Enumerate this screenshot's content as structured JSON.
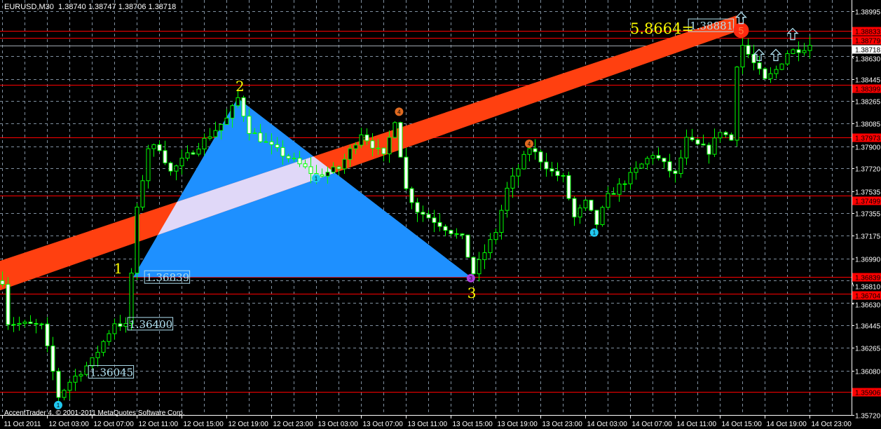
{
  "header": {
    "symbol": "EURUSD,M30",
    "open": "1.38740",
    "high": "1.38747",
    "low": "1.38706",
    "close": "1.38718"
  },
  "copyright": "AccentTrader 4, © 2001-2011 MetaQuotes Software Corp.",
  "colors": {
    "background": "#000000",
    "grid": "#8090a0",
    "candle_outline": "#00ff00",
    "bear_body": "#ffffff",
    "bull_body": "#000000",
    "level_line": "#ff0000",
    "channel": "#ff4010",
    "triangle": "#1e90ff",
    "overlap": "#e0d8f8",
    "label_yellow": "#ffff00"
  },
  "chart_data": {
    "type": "candlestick",
    "timeframe": "M30",
    "grid": true,
    "ylim": [
      1.3572,
      1.3908
    ],
    "y_ticks": [
      "1.38995",
      "1.38630",
      "1.38445",
      "1.38265",
      "1.38085",
      "1.37900",
      "1.37720",
      "1.37535",
      "1.37355",
      "1.37175",
      "1.36990",
      "1.36810",
      "1.36630",
      "1.36445",
      "1.36265",
      "1.36080",
      "1.35720"
    ],
    "x_ticks": [
      "11 Oct 2011",
      "12 Oct 03:00",
      "12 Oct 07:00",
      "12 Oct 11:00",
      "12 Oct 15:00",
      "12 Oct 19:00",
      "12 Oct 23:00",
      "13 Oct 03:00",
      "13 Oct 07:00",
      "13 Oct 11:00",
      "13 Oct 15:00",
      "13 Oct 19:00",
      "13 Oct 23:00",
      "14 Oct 03:00",
      "14 Oct 07:00",
      "14 Oct 11:00",
      "14 Oct 15:00",
      "14 Oct 19:00",
      "14 Oct 23:00"
    ],
    "x_start": "11 Oct 23:00",
    "approx_close_path_hours_from_start": [
      [
        0,
        1.3681
      ],
      [
        0.5,
        1.3647
      ],
      [
        3.5,
        1.3644
      ],
      [
        4.5,
        1.3607
      ],
      [
        5,
        1.3587
      ],
      [
        6,
        1.3599
      ],
      [
        8,
        1.3616
      ],
      [
        10,
        1.3647
      ],
      [
        11,
        1.3644
      ],
      [
        11.5,
        1.3687
      ],
      [
        12,
        1.3738
      ],
      [
        13,
        1.3789
      ],
      [
        14,
        1.3789
      ],
      [
        15,
        1.3769
      ],
      [
        16,
        1.3778
      ],
      [
        18,
        1.3795
      ],
      [
        20,
        1.3812
      ],
      [
        21,
        1.3829
      ],
      [
        22,
        1.3803
      ],
      [
        24,
        1.3789
      ],
      [
        26,
        1.3778
      ],
      [
        28,
        1.3766
      ],
      [
        30,
        1.3772
      ],
      [
        32,
        1.3801
      ],
      [
        34,
        1.3781
      ],
      [
        35,
        1.3812
      ],
      [
        36,
        1.3755
      ],
      [
        37,
        1.3738
      ],
      [
        39,
        1.3727
      ],
      [
        41,
        1.3715
      ],
      [
        42,
        1.3687
      ],
      [
        43,
        1.3704
      ],
      [
        44,
        1.3721
      ],
      [
        45,
        1.3755
      ],
      [
        47,
        1.3789
      ],
      [
        49,
        1.3769
      ],
      [
        50,
        1.3764
      ],
      [
        51,
        1.3732
      ],
      [
        52,
        1.3744
      ],
      [
        53,
        1.3727
      ],
      [
        54,
        1.3749
      ],
      [
        56,
        1.3766
      ],
      [
        58,
        1.3784
      ],
      [
        60,
        1.3766
      ],
      [
        61,
        1.3795
      ],
      [
        63,
        1.3786
      ],
      [
        64,
        1.3803
      ],
      [
        65,
        1.3795
      ],
      [
        65.5,
        1.3857
      ],
      [
        66,
        1.3872
      ],
      [
        67,
        1.3857
      ],
      [
        68,
        1.3843
      ],
      [
        69,
        1.3852
      ],
      [
        70,
        1.3866
      ],
      [
        72,
        1.38718
      ]
    ],
    "levels": [
      {
        "price": "1.38833",
        "color": "#ff0000"
      },
      {
        "price": "1.38779",
        "color": "#ff0000"
      },
      {
        "price": "1.38399",
        "color": "#ff0000"
      },
      {
        "price": "1.37973",
        "color": "#ff0000"
      },
      {
        "price": "1.37499",
        "color": "#ff0000"
      },
      {
        "price": "1.36839",
        "color": "#ff0000"
      },
      {
        "price": "1.36704",
        "color": "#ff0000"
      },
      {
        "price": "1.35906",
        "color": "#ff0000"
      }
    ],
    "bid_line": "1.38718",
    "channel": {
      "start": {
        "h": -0.2,
        "top": 1.3697,
        "bottom": 1.3673
      },
      "end": {
        "h": 65.5,
        "top": 1.3896,
        "bottom": 1.3883
      }
    },
    "pattern_points": [
      {
        "label": "1",
        "h": 11.7,
        "price": 1.36839
      },
      {
        "label": "2",
        "h": 21,
        "price": 1.3829
      },
      {
        "label": "3",
        "h": 41.8,
        "price": 1.36839
      }
    ],
    "price_labels": [
      {
        "text": "1.36839",
        "h": 12.7,
        "price": 1.36839
      },
      {
        "text": "1.36400",
        "h": 11.2,
        "price": 1.3646
      },
      {
        "text": "1.36045",
        "h": 7.7,
        "price": 1.3607
      },
      {
        "text": "1.38881",
        "h": 61.2,
        "price": 1.38881
      }
    ],
    "ratio_label": "5.8664=",
    "markers": [
      {
        "type": "circle",
        "color": "#ff2a10",
        "glyph": "5",
        "h": 65.9,
        "price": 1.3884,
        "big": true
      },
      {
        "type": "circle",
        "color": "#e06a20",
        "glyph": "4",
        "h": 35.4,
        "price": 1.3818
      },
      {
        "type": "circle",
        "color": "#e06a20",
        "glyph": "4",
        "h": 47,
        "price": 1.3792
      },
      {
        "type": "circle",
        "color": "#20c8f0",
        "glyph": "1",
        "h": 28,
        "price": 1.3764
      },
      {
        "type": "circle",
        "color": "#20c8f0",
        "glyph": "1",
        "h": 52.8,
        "price": 1.372
      },
      {
        "type": "circle",
        "color": "#20c8f0",
        "glyph": "1",
        "h": 5,
        "price": 1.358
      },
      {
        "type": "circle",
        "color": "#b040e0",
        "glyph": "3",
        "h": 41.8,
        "price": 1.3683
      }
    ],
    "up_arrows": [
      {
        "h": 65.9,
        "price": 1.3894
      },
      {
        "h": 67.5,
        "price": 1.3864
      },
      {
        "h": 69,
        "price": 1.3864
      },
      {
        "h": 70.5,
        "price": 1.3881
      }
    ]
  }
}
